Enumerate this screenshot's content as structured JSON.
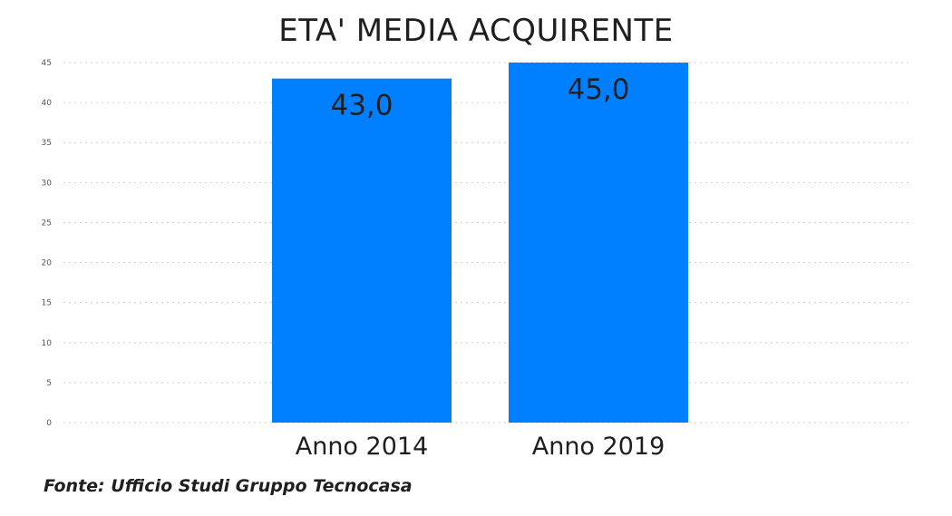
{
  "chart_data": {
    "type": "bar",
    "title": "ETA' MEDIA ACQUIRENTE",
    "categories": [
      "Anno 2014",
      "Anno 2019"
    ],
    "values": [
      43.0,
      45.0
    ],
    "data_labels": [
      "43,0",
      "45,0"
    ],
    "yticks": [
      0,
      5,
      10,
      15,
      20,
      25,
      30,
      35,
      40,
      45
    ],
    "ylim": [
      0,
      45
    ],
    "xlabel": "",
    "ylabel": "",
    "grid": true,
    "colors": {
      "bar": "#0080FF",
      "grid": "#cfcfcf",
      "text": "#1f1f1f",
      "tick": "#555555"
    }
  },
  "source": "Fonte: Ufficio Studi Gruppo Tecnocasa"
}
